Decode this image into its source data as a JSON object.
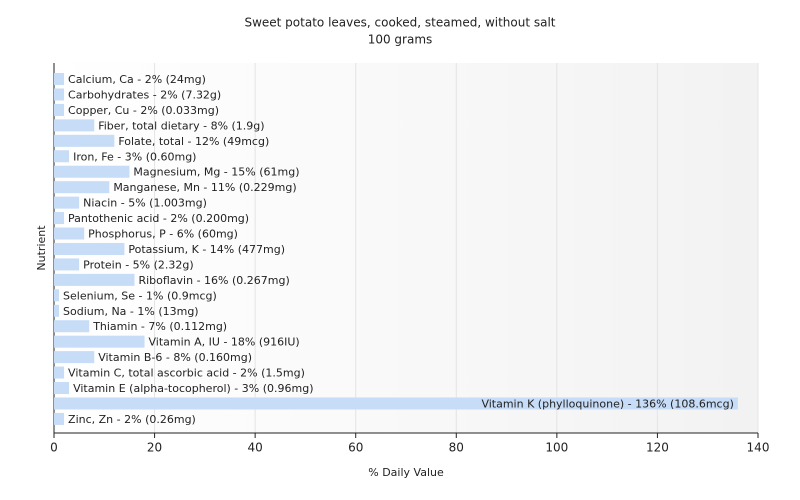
{
  "chart_data": {
    "type": "bar",
    "orientation": "horizontal",
    "title": "Sweet potato leaves, cooked, steamed, without salt",
    "subtitle": "100 grams",
    "x_label": "% Daily Value",
    "y_label": "Nutrient",
    "values": [
      2,
      2,
      2,
      8,
      12,
      3,
      15,
      11,
      5,
      2,
      6,
      14,
      5,
      16,
      1,
      1,
      7,
      18,
      8,
      2,
      3,
      136,
      2
    ],
    "value_labels": [
      "Calcium, Ca - 2% (24mg)",
      "Carbohydrates - 2% (7.32g)",
      "Copper, Cu - 2% (0.033mg)",
      "Fiber, total dietary - 8% (1.9g)",
      "Folate, total - 12% (49mcg)",
      "Iron, Fe - 3% (0.60mg)",
      "Magnesium, Mg - 15% (61mg)",
      "Manganese, Mn - 11% (0.229mg)",
      "Niacin - 5% (1.003mg)",
      "Pantothenic acid - 2% (0.200mg)",
      "Phosphorus, P - 6% (60mg)",
      "Potassium, K - 14% (477mg)",
      "Protein - 5% (2.32g)",
      "Riboflavin - 16% (0.267mg)",
      "Selenium, Se - 1% (0.9mcg)",
      "Sodium, Na - 1% (13mg)",
      "Thiamin - 7% (0.112mg)",
      "Vitamin A, IU - 18% (916IU)",
      "Vitamin B-6 - 8% (0.160mg)",
      "Vitamin C, total ascorbic acid - 2% (1.5mg)",
      "Vitamin E (alpha-tocopherol) - 3% (0.96mg)",
      "Vitamin K (phylloquinone) - 136% (108.6mcg)",
      "Zinc, Zn - 2% (0.26mg)"
    ],
    "color": "#c6dcf7",
    "xlim": [
      0,
      140
    ],
    "xticks": [
      0,
      20,
      40,
      60,
      80,
      100,
      120,
      140
    ],
    "grid": true
  }
}
